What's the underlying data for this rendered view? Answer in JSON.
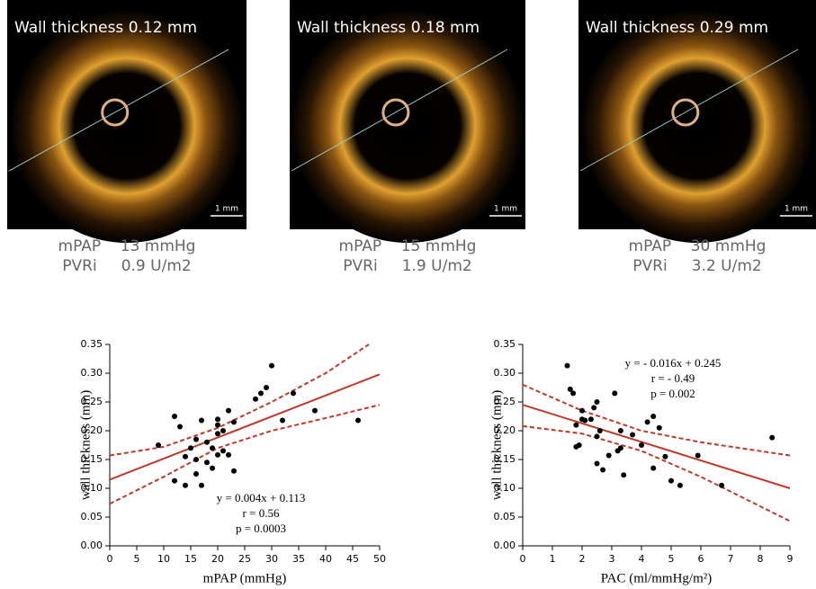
{
  "panels": [
    {
      "title": "Wall thickness  0.12 mm",
      "scale_label": "1 mm",
      "lines": [
        "mPAP    13 mmHg",
        "PVRi     0.9 U/m2"
      ]
    },
    {
      "title": "Wall thickness  0.18 mm",
      "scale_label": "1 mm",
      "lines": [
        "mPAP    15 mmHg",
        "PVRi     1.9 U/m2"
      ]
    },
    {
      "title": "Wall thickness  0.29 mm",
      "scale_label": "1 mm",
      "lines": [
        "mPAP    30 mmHg",
        "PVRi     3.2 U/m2"
      ]
    }
  ],
  "chart_data": [
    {
      "type": "scatter",
      "x_label": "mPAP (mmHg)",
      "y_label": "wall thickness (mm)",
      "x": [
        9,
        12,
        12,
        13,
        14,
        14,
        15,
        16,
        16,
        16,
        17,
        17,
        18,
        18,
        19,
        19,
        20,
        20,
        20,
        20,
        21,
        21,
        22,
        22,
        23,
        23,
        27,
        28,
        29,
        30,
        32,
        34,
        38,
        46
      ],
      "values": [
        0.175,
        0.225,
        0.113,
        0.207,
        0.105,
        0.155,
        0.17,
        0.125,
        0.185,
        0.15,
        0.218,
        0.105,
        0.18,
        0.145,
        0.135,
        0.17,
        0.22,
        0.21,
        0.195,
        0.158,
        0.2,
        0.165,
        0.235,
        0.158,
        0.215,
        0.13,
        0.255,
        0.265,
        0.275,
        0.313,
        0.218,
        0.265,
        0.235,
        0.218
      ],
      "color": "#000000",
      "fit": {
        "x": [
          0,
          50
        ],
        "values": [
          0.115,
          0.298
        ],
        "color": "#c0392b"
      },
      "ci_upper": {
        "x": [
          0,
          10,
          20,
          30,
          40,
          48
        ],
        "values": [
          0.157,
          0.172,
          0.205,
          0.25,
          0.3,
          0.35
        ]
      },
      "ci_lower": {
        "x": [
          0,
          10,
          20,
          30,
          40,
          50
        ],
        "values": [
          0.073,
          0.12,
          0.17,
          0.2,
          0.222,
          0.245
        ]
      },
      "annotations": [
        "y = 0.004x + 0.113",
        "r = 0.56",
        "p = 0.0003"
      ],
      "xlim": [
        0,
        50
      ],
      "xticks": [
        0,
        5,
        10,
        15,
        20,
        25,
        30,
        35,
        40,
        45,
        50
      ],
      "ylim": [
        0,
        0.35
      ],
      "yticks": [
        {
          "value": 0,
          "label": "0.00"
        },
        {
          "value": 0.05,
          "label": "0.05"
        },
        {
          "value": 0.1,
          "label": "0.10"
        },
        {
          "value": 0.15,
          "label": "0.15"
        },
        {
          "value": 0.2,
          "label": "0.20"
        },
        {
          "value": 0.25,
          "label": "0.25"
        },
        {
          "value": 0.3,
          "label": "0.30"
        },
        {
          "value": 0.35,
          "label": "0.35"
        }
      ]
    },
    {
      "type": "scatter",
      "x_label": "PAC (ml/mmHg/m²)",
      "y_label": "wall thickness (mm)",
      "x": [
        1.5,
        1.6,
        1.7,
        1.8,
        1.8,
        1.9,
        2,
        2,
        2.1,
        2.3,
        2.4,
        2.5,
        2.5,
        2.5,
        2.6,
        2.7,
        2.9,
        3.1,
        3.2,
        3.3,
        3.3,
        3.4,
        3.7,
        4,
        4.2,
        4.4,
        4.4,
        4.6,
        4.8,
        5,
        5.3,
        5.9,
        6.7,
        8.4
      ],
      "values": [
        0.313,
        0.272,
        0.265,
        0.172,
        0.21,
        0.175,
        0.22,
        0.235,
        0.218,
        0.22,
        0.24,
        0.25,
        0.19,
        0.143,
        0.2,
        0.132,
        0.157,
        0.265,
        0.165,
        0.2,
        0.17,
        0.123,
        0.193,
        0.175,
        0.215,
        0.225,
        0.135,
        0.205,
        0.155,
        0.113,
        0.105,
        0.157,
        0.105,
        0.188
      ],
      "color": "#000000",
      "fit": {
        "x": [
          0,
          9
        ],
        "values": [
          0.245,
          0.1
        ],
        "color": "#c0392b"
      },
      "ci_upper": {
        "x": [
          0,
          2,
          4,
          6,
          9
        ],
        "values": [
          0.28,
          0.235,
          0.2,
          0.18,
          0.157
        ]
      },
      "ci_lower": {
        "x": [
          0,
          2,
          4,
          6,
          9
        ],
        "values": [
          0.208,
          0.195,
          0.165,
          0.12,
          0.043
        ]
      },
      "annotations": [
        "y = - 0.016x + 0.245",
        "r = - 0.49",
        "p = 0.002"
      ],
      "xlim": [
        0,
        9
      ],
      "xticks": [
        0,
        1,
        2,
        3,
        4,
        5,
        6,
        7,
        8,
        9
      ],
      "ylim": [
        0,
        0.35
      ],
      "yticks": [
        {
          "value": 0,
          "label": "0.00"
        },
        {
          "value": 0.05,
          "label": "0.05"
        },
        {
          "value": 0.1,
          "label": "0.10"
        },
        {
          "value": 0.15,
          "label": "0.15"
        },
        {
          "value": 0.2,
          "label": "0.20"
        },
        {
          "value": 0.25,
          "label": "0.25"
        },
        {
          "value": 0.3,
          "label": "0.30"
        },
        {
          "value": 0.35,
          "label": "0.35"
        }
      ]
    }
  ]
}
